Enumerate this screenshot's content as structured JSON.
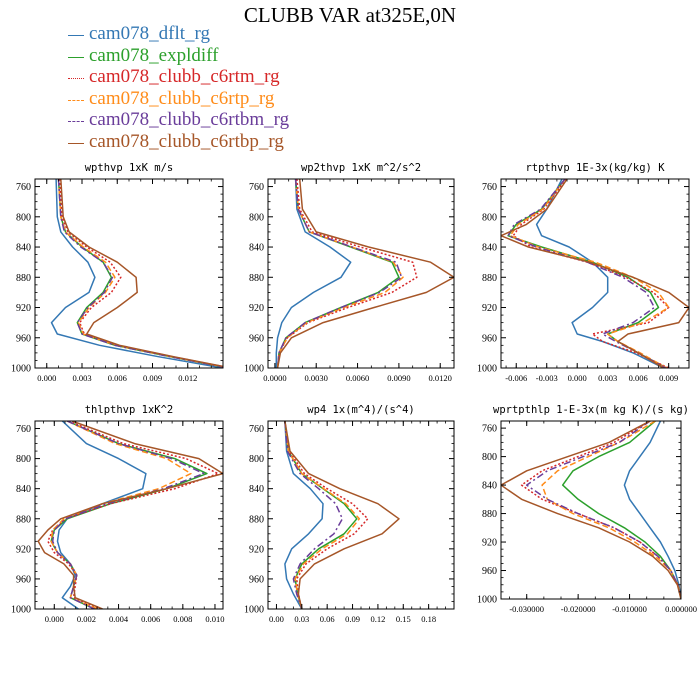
{
  "title": "CLUBB VAR at325E,0N",
  "colors": {
    "cam078_dflt_rg": "#3478b4",
    "cam078_expldiff": "#2ca02c",
    "cam078_clubb_c6rtm_rg": "#d62728",
    "cam078_clubb_c6rtp_rg": "#ff8c1a",
    "cam078_clubb_c6rtbm_rg": "#6a3d9a",
    "cam078_clubb_c6rtbp_rg": "#a65628"
  },
  "legend": [
    {
      "name": "cam078_dflt_rg",
      "dash": "solid"
    },
    {
      "name": "cam078_expldiff",
      "dash": "solid"
    },
    {
      "name": "cam078_clubb_c6rtm_rg",
      "dash": "dotted"
    },
    {
      "name": "cam078_clubb_c6rtp_rg",
      "dash": "dashed"
    },
    {
      "name": "cam078_clubb_c6rtbm_rg",
      "dash": "dashdot"
    },
    {
      "name": "cam078_clubb_c6rtbp_rg",
      "dash": "solid"
    }
  ],
  "chart_data": [
    {
      "type": "line",
      "title": "wpthvp  1xK m/s",
      "xlim": [
        -0.001,
        0.015
      ],
      "ylim": [
        1000,
        750
      ],
      "yticks": [
        760,
        800,
        840,
        880,
        920,
        960,
        1000
      ],
      "xticks": [
        0,
        0.003,
        0.006,
        0.009,
        0.012
      ],
      "xticklabels": [
        "0.000",
        "0.003",
        "0.006",
        "0.009",
        "0.012"
      ],
      "p": [
        750,
        800,
        820,
        840,
        860,
        880,
        900,
        920,
        940,
        955,
        970,
        985,
        1000
      ],
      "series": [
        {
          "name": "cam078_dflt_rg",
          "values": [
            0.0008,
            0.0009,
            0.0012,
            0.0022,
            0.0035,
            0.0041,
            0.0036,
            0.0016,
            0.0004,
            0.0009,
            0.0045,
            0.0095,
            0.015
          ]
        },
        {
          "name": "cam078_expldiff",
          "values": [
            0.001,
            0.0012,
            0.0016,
            0.003,
            0.0048,
            0.0055,
            0.0048,
            0.0034,
            0.0026,
            0.003,
            0.0058,
            0.0105,
            0.0155
          ]
        },
        {
          "name": "cam078_clubb_c6rtm_rg",
          "values": [
            0.0011,
            0.0013,
            0.0018,
            0.0034,
            0.0054,
            0.0063,
            0.0055,
            0.0038,
            0.0028,
            0.0032,
            0.006,
            0.0107,
            0.0156
          ]
        },
        {
          "name": "cam078_clubb_c6rtp_rg",
          "values": [
            0.001,
            0.0012,
            0.0016,
            0.0031,
            0.005,
            0.0058,
            0.005,
            0.0036,
            0.0027,
            0.0031,
            0.0059,
            0.0106,
            0.0155
          ]
        },
        {
          "name": "cam078_clubb_c6rtbm_rg",
          "values": [
            0.001,
            0.0012,
            0.0015,
            0.0029,
            0.0048,
            0.0056,
            0.0049,
            0.0035,
            0.0026,
            0.003,
            0.0058,
            0.0105,
            0.0155
          ]
        },
        {
          "name": "cam078_clubb_c6rtbp_rg",
          "values": [
            0.0012,
            0.0014,
            0.0019,
            0.0036,
            0.006,
            0.0076,
            0.0077,
            0.006,
            0.004,
            0.0034,
            0.0062,
            0.0108,
            0.0157
          ]
        }
      ]
    },
    {
      "type": "line",
      "title": "wp2thvp  1xK m^2/s^2",
      "xlim": [
        -0.0005,
        0.013
      ],
      "ylim": [
        1000,
        750
      ],
      "yticks": [
        760,
        800,
        840,
        880,
        920,
        960,
        1000
      ],
      "xticks": [
        0,
        0.003,
        0.006,
        0.009,
        0.012
      ],
      "xticklabels": [
        "0.0000",
        "0.0030",
        "0.0060",
        "0.0090",
        "0.0120"
      ],
      "p": [
        750,
        790,
        820,
        840,
        860,
        880,
        900,
        920,
        940,
        960,
        980,
        1000
      ],
      "series": [
        {
          "name": "cam078_dflt_rg",
          "values": [
            0.0015,
            0.0016,
            0.0022,
            0.004,
            0.0055,
            0.0048,
            0.0028,
            0.0012,
            0.0005,
            0.0002,
            0.0001,
            0.0001
          ]
        },
        {
          "name": "cam078_expldiff",
          "values": [
            0.0015,
            0.0017,
            0.0025,
            0.0055,
            0.0085,
            0.009,
            0.0075,
            0.0048,
            0.0022,
            0.0008,
            0.0003,
            0.0002
          ]
        },
        {
          "name": "cam078_clubb_c6rtm_rg",
          "values": [
            0.0016,
            0.0018,
            0.0027,
            0.0062,
            0.01,
            0.0103,
            0.0085,
            0.0053,
            0.0024,
            0.0009,
            0.0003,
            0.0002
          ]
        },
        {
          "name": "cam078_clubb_c6rtp_rg",
          "values": [
            0.0015,
            0.0017,
            0.0025,
            0.0056,
            0.0086,
            0.0093,
            0.008,
            0.005,
            0.0023,
            0.0009,
            0.0003,
            0.0002
          ]
        },
        {
          "name": "cam078_clubb_c6rtbm_rg",
          "values": [
            0.0015,
            0.0017,
            0.0025,
            0.0056,
            0.0088,
            0.0092,
            0.0076,
            0.0048,
            0.0022,
            0.0008,
            0.0003,
            0.0002
          ]
        },
        {
          "name": "cam078_clubb_c6rtbp_rg",
          "values": [
            0.0018,
            0.002,
            0.003,
            0.0068,
            0.0113,
            0.013,
            0.011,
            0.0072,
            0.0035,
            0.0012,
            0.0004,
            0.0002
          ]
        }
      ]
    },
    {
      "type": "line",
      "title": "rtpthvp  1E-3x(kg/kg) K",
      "xlim": [
        -0.0075,
        0.011
      ],
      "ylim": [
        1000,
        750
      ],
      "yticks": [
        760,
        800,
        840,
        880,
        920,
        960,
        1000
      ],
      "xticks": [
        -0.006,
        -0.003,
        0,
        0.003,
        0.006,
        0.009
      ],
      "xticklabels": [
        "-0.006",
        "-0.003",
        "0.000",
        "0.003",
        "0.006",
        "0.009"
      ],
      "p": [
        750,
        790,
        810,
        825,
        840,
        860,
        880,
        900,
        920,
        940,
        955,
        965,
        980,
        1000
      ],
      "series": [
        {
          "name": "cam078_dflt_rg",
          "values": [
            -0.0015,
            -0.003,
            -0.004,
            -0.0035,
            -0.0008,
            0.0015,
            0.003,
            0.003,
            0.0015,
            -0.0005,
            0.0,
            0.0025,
            0.0055,
            0.0085
          ]
        },
        {
          "name": "cam078_expldiff",
          "values": [
            -0.0012,
            -0.0035,
            -0.006,
            -0.0068,
            -0.0035,
            0.0015,
            0.005,
            0.0072,
            0.008,
            0.006,
            0.003,
            0.004,
            0.006,
            0.0088
          ]
        },
        {
          "name": "cam078_clubb_c6rtm_rg",
          "values": [
            -0.0011,
            -0.0033,
            -0.0055,
            -0.0063,
            -0.0045,
            0.001,
            0.0048,
            0.0075,
            0.009,
            0.007,
            0.0015,
            0.0025,
            0.0058,
            0.009
          ]
        },
        {
          "name": "cam078_clubb_c6rtp_rg",
          "values": [
            -0.0012,
            -0.0034,
            -0.0058,
            -0.0066,
            -0.0038,
            0.0018,
            0.0055,
            0.008,
            0.009,
            0.0065,
            0.003,
            0.004,
            0.0062,
            0.0088
          ]
        },
        {
          "name": "cam078_clubb_c6rtbm_rg",
          "values": [
            -0.0012,
            -0.0036,
            -0.0062,
            -0.0068,
            -0.004,
            0.001,
            0.0045,
            0.0068,
            0.0076,
            0.0055,
            0.0025,
            0.0038,
            0.006,
            0.0087
          ]
        },
        {
          "name": "cam078_clubb_c6rtbp_rg",
          "values": [
            -0.001,
            -0.003,
            -0.005,
            -0.0075,
            -0.0048,
            0.0012,
            0.0055,
            0.009,
            0.011,
            0.01,
            0.005,
            0.004,
            0.006,
            0.0085
          ]
        }
      ]
    },
    {
      "type": "line",
      "title": "thlpthvp  1xK^2",
      "xlim": [
        -0.0012,
        0.0105
      ],
      "ylim": [
        1000,
        750
      ],
      "yticks": [
        760,
        800,
        840,
        880,
        920,
        960,
        1000
      ],
      "xticks": [
        0,
        0.002,
        0.004,
        0.006,
        0.008,
        0.01
      ],
      "xticklabels": [
        "0.000",
        "0.002",
        "0.004",
        "0.006",
        "0.008",
        "0.010"
      ],
      "p": [
        750,
        780,
        800,
        820,
        840,
        860,
        880,
        895,
        910,
        925,
        940,
        955,
        970,
        985,
        1000
      ],
      "series": [
        {
          "name": "cam078_dflt_rg",
          "values": [
            0.0005,
            0.002,
            0.004,
            0.0057,
            0.0055,
            0.003,
            0.0008,
            0.0003,
            0.0002,
            0.0004,
            0.001,
            0.0013,
            0.001,
            0.0005,
            0.0015
          ]
        },
        {
          "name": "cam078_expldiff",
          "values": [
            0.0008,
            0.004,
            0.0075,
            0.0095,
            0.007,
            0.0035,
            0.0008,
            0.0,
            -0.0002,
            0.0002,
            0.001,
            0.0014,
            0.0012,
            0.001,
            0.0025
          ]
        },
        {
          "name": "cam078_clubb_c6rtm_rg",
          "values": [
            0.0009,
            0.0043,
            0.0082,
            0.0102,
            0.0075,
            0.0035,
            0.0007,
            -0.0001,
            -0.0004,
            0.0,
            0.0009,
            0.0014,
            0.0013,
            0.0012,
            0.0028
          ]
        },
        {
          "name": "cam078_clubb_c6rtp_rg",
          "values": [
            0.0008,
            0.0038,
            0.007,
            0.0085,
            0.0065,
            0.003,
            0.0006,
            -0.0001,
            -0.0002,
            0.0002,
            0.001,
            0.0014,
            0.0012,
            0.001,
            0.0027
          ]
        },
        {
          "name": "cam078_clubb_c6rtbm_rg",
          "values": [
            0.0008,
            0.004,
            0.0073,
            0.0093,
            0.0068,
            0.0033,
            0.0007,
            0.0,
            -0.0001,
            0.0002,
            0.001,
            0.0014,
            0.0012,
            0.001,
            0.0025
          ]
        },
        {
          "name": "cam078_clubb_c6rtbp_rg",
          "values": [
            0.0011,
            0.005,
            0.009,
            0.0105,
            0.007,
            0.003,
            0.0004,
            -0.0004,
            -0.001,
            -0.0006,
            0.0006,
            0.0012,
            0.0012,
            0.0013,
            0.003
          ]
        }
      ]
    },
    {
      "type": "line",
      "title": "wp4  1x(m^4)/(s^4)",
      "xlim": [
        -0.01,
        0.21
      ],
      "ylim": [
        1000,
        750
      ],
      "yticks": [
        760,
        800,
        840,
        880,
        920,
        960,
        1000
      ],
      "xticks": [
        0,
        0.03,
        0.06,
        0.09,
        0.12,
        0.15,
        0.18
      ],
      "xticklabels": [
        "0.00",
        "0.03",
        "0.06",
        "0.09",
        "0.12",
        "0.15",
        "0.18"
      ],
      "p": [
        750,
        790,
        820,
        840,
        860,
        880,
        900,
        920,
        940,
        960,
        980,
        1000
      ],
      "series": [
        {
          "name": "cam078_dflt_rg",
          "values": [
            0.01,
            0.012,
            0.02,
            0.04,
            0.055,
            0.054,
            0.038,
            0.018,
            0.01,
            0.012,
            0.02,
            0.03
          ]
        },
        {
          "name": "cam078_expldiff",
          "values": [
            0.01,
            0.014,
            0.03,
            0.055,
            0.08,
            0.095,
            0.08,
            0.05,
            0.03,
            0.022,
            0.025,
            0.03
          ]
        },
        {
          "name": "cam078_clubb_c6rtm_rg",
          "values": [
            0.01,
            0.015,
            0.033,
            0.06,
            0.09,
            0.108,
            0.092,
            0.06,
            0.035,
            0.024,
            0.026,
            0.03
          ]
        },
        {
          "name": "cam078_clubb_c6rtp_rg",
          "values": [
            0.01,
            0.014,
            0.03,
            0.056,
            0.082,
            0.098,
            0.084,
            0.054,
            0.032,
            0.022,
            0.025,
            0.03
          ]
        },
        {
          "name": "cam078_clubb_c6rtbm_rg",
          "values": [
            0.01,
            0.013,
            0.028,
            0.05,
            0.07,
            0.078,
            0.068,
            0.045,
            0.028,
            0.02,
            0.024,
            0.03
          ]
        },
        {
          "name": "cam078_clubb_c6rtbp_rg",
          "values": [
            0.01,
            0.016,
            0.038,
            0.075,
            0.12,
            0.145,
            0.125,
            0.08,
            0.045,
            0.028,
            0.026,
            0.03
          ]
        }
      ]
    },
    {
      "type": "line",
      "title": "wprtpthlp  1-E-3x(m kg K)/(s kg)",
      "xlim": [
        -0.035,
        0.0
      ],
      "ylim": [
        1000,
        750
      ],
      "yticks": [
        760,
        800,
        840,
        880,
        920,
        960,
        1000
      ],
      "xticks": [
        -0.03,
        -0.02,
        -0.01,
        0.0
      ],
      "xticklabels": [
        "-0.030000",
        "-0.020000",
        "-0.010000",
        "0.000000"
      ],
      "p": [
        750,
        780,
        800,
        820,
        840,
        860,
        880,
        900,
        920,
        940,
        960,
        980,
        1000
      ],
      "series": [
        {
          "name": "cam078_dflt_rg",
          "values": [
            -0.004,
            -0.006,
            -0.008,
            -0.01,
            -0.011,
            -0.01,
            -0.008,
            -0.006,
            -0.004,
            -0.0025,
            -0.0012,
            -0.0004,
            0.0
          ]
        },
        {
          "name": "cam078_expldiff",
          "values": [
            -0.005,
            -0.01,
            -0.016,
            -0.021,
            -0.023,
            -0.02,
            -0.016,
            -0.011,
            -0.007,
            -0.004,
            -0.002,
            -0.0006,
            0.0
          ]
        },
        {
          "name": "cam078_clubb_c6rtm_rg",
          "values": [
            -0.006,
            -0.013,
            -0.02,
            -0.027,
            -0.031,
            -0.027,
            -0.02,
            -0.013,
            -0.008,
            -0.0045,
            -0.002,
            -0.0006,
            0.0
          ]
        },
        {
          "name": "cam078_clubb_c6rtp_rg",
          "values": [
            -0.005,
            -0.012,
            -0.018,
            -0.024,
            -0.027,
            -0.026,
            -0.021,
            -0.014,
            -0.009,
            -0.005,
            -0.002,
            -0.0006,
            0.0
          ]
        },
        {
          "name": "cam078_clubb_c6rtbm_rg",
          "values": [
            -0.006,
            -0.012,
            -0.019,
            -0.026,
            -0.03,
            -0.026,
            -0.02,
            -0.013,
            -0.008,
            -0.0045,
            -0.002,
            -0.0006,
            0.0
          ]
        },
        {
          "name": "cam078_clubb_c6rtbp_rg",
          "values": [
            -0.006,
            -0.014,
            -0.022,
            -0.03,
            -0.035,
            -0.031,
            -0.024,
            -0.016,
            -0.01,
            -0.0055,
            -0.0025,
            -0.0007,
            0.0
          ]
        }
      ]
    }
  ]
}
